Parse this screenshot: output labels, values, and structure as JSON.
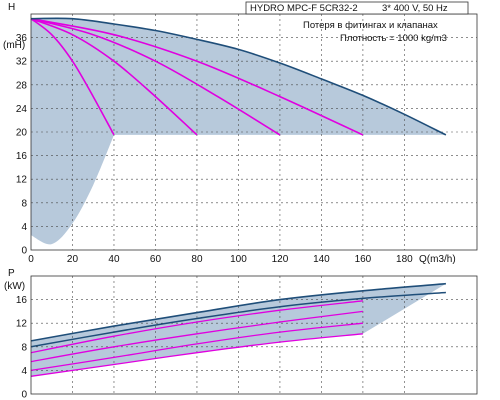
{
  "header": {
    "model": "HYDRO MPC-F 5CR32-2",
    "supply": "3* 400 V, 50 Hz",
    "note_losses": "Потеря в фитингах и клапанах",
    "note_density": "Плотность = 1000 kg/m3"
  },
  "chart_data": [
    {
      "type": "line",
      "ylabel": "H",
      "yunit": "(mH)",
      "xlabel": "Q(m3/h)",
      "xlim": [
        0,
        215
      ],
      "ylim": [
        0,
        40
      ],
      "x_ticks": [
        0,
        20,
        40,
        60,
        80,
        100,
        120,
        140,
        160,
        180
      ],
      "y_ticks": [
        0,
        4,
        8,
        12,
        16,
        20,
        24,
        28,
        32,
        36
      ],
      "grid": true,
      "colors": {
        "full_curve": "#1f4e79",
        "partial_curves": "#e000e0",
        "area": "#b7c9db"
      },
      "max_curve": {
        "q": [
          0,
          20,
          40,
          60,
          80,
          100,
          120,
          140,
          160,
          180,
          200
        ],
        "h": [
          39.2,
          39.2,
          38.3,
          37.2,
          35.7,
          34.0,
          31.7,
          29.0,
          26.2,
          23.0,
          19.5
        ]
      },
      "min_envelope": {
        "q": [
          0,
          10,
          20,
          30,
          40
        ],
        "h": [
          2.5,
          1.0,
          4.5,
          11.0,
          19.5
        ]
      },
      "pump_curves": [
        {
          "q": [
            0,
            10,
            20,
            30,
            40
          ],
          "h": [
            39.2,
            36.5,
            32.0,
            26.0,
            19.5
          ]
        },
        {
          "q": [
            0,
            20,
            40,
            60,
            80
          ],
          "h": [
            39.2,
            36.5,
            32.0,
            26.0,
            19.5
          ]
        },
        {
          "q": [
            0,
            30,
            60,
            90,
            120
          ],
          "h": [
            39.2,
            36.5,
            32.0,
            26.0,
            19.5
          ]
        },
        {
          "q": [
            0,
            40,
            80,
            120,
            160
          ],
          "h": [
            39.2,
            36.5,
            32.0,
            26.0,
            19.5
          ]
        }
      ]
    },
    {
      "type": "line",
      "ylabel": "P",
      "yunit": "(kW)",
      "xlim": [
        0,
        215
      ],
      "ylim": [
        0,
        20
      ],
      "y_ticks": [
        0,
        4,
        8,
        12,
        16
      ],
      "grid": true,
      "colors": {
        "full_curve": "#1f4e79",
        "partial_curves": "#e000e0",
        "area": "#b7c9db"
      },
      "max_curve": {
        "q": [
          0,
          40,
          80,
          120,
          160,
          200
        ],
        "p": [
          9.0,
          11.5,
          13.8,
          16.0,
          17.5,
          18.7
        ]
      },
      "second_curve": {
        "q": [
          0,
          40,
          80,
          120,
          160,
          200
        ],
        "p": [
          8.0,
          10.5,
          12.8,
          14.8,
          16.2,
          17.2
        ]
      },
      "pump_curves": [
        {
          "q": [
            0,
            40,
            80,
            120,
            160
          ],
          "p": [
            7.0,
            9.8,
            12.2,
            14.2,
            15.8
          ]
        },
        {
          "q": [
            0,
            40,
            80,
            120,
            160
          ],
          "p": [
            5.5,
            8.0,
            10.2,
            12.2,
            14.0
          ]
        },
        {
          "q": [
            0,
            40,
            80,
            120,
            160
          ],
          "p": [
            4.0,
            6.2,
            8.5,
            10.5,
            12.0
          ]
        },
        {
          "q": [
            0,
            40,
            80,
            120,
            160
          ],
          "p": [
            3.0,
            5.0,
            7.0,
            8.8,
            10.2
          ]
        }
      ]
    }
  ]
}
